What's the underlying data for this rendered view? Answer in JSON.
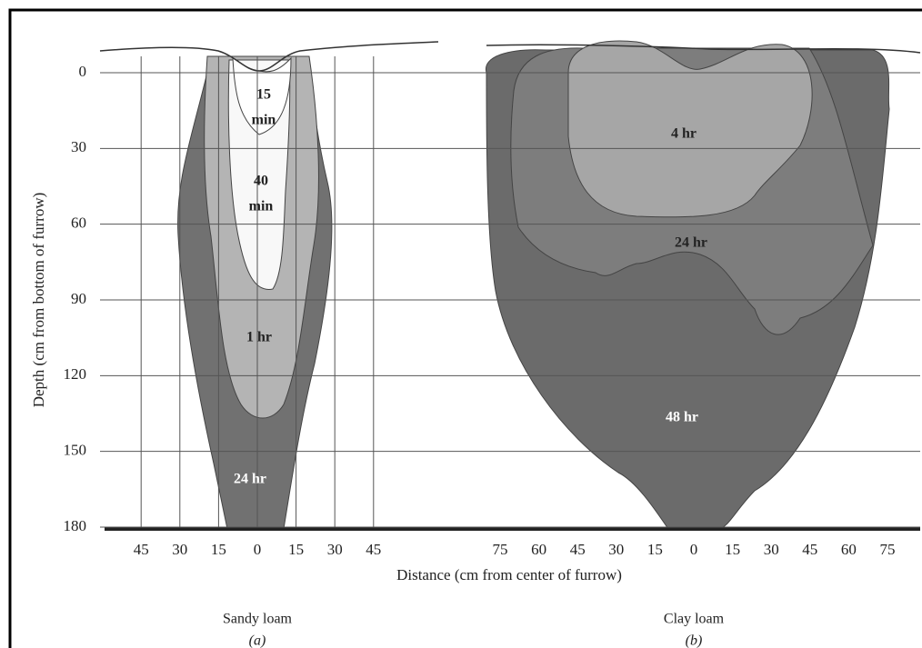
{
  "y_axis": {
    "label": "Depth (cm from bottom of furrow)",
    "ticks": [
      0,
      30,
      60,
      90,
      120,
      150,
      180
    ]
  },
  "x_axis": {
    "label": "Distance (cm from center of furrow)"
  },
  "panels": [
    {
      "name": "Sandy loam",
      "tag": "(a)",
      "x_ticks": [
        45,
        30,
        15,
        0,
        15,
        30,
        45
      ],
      "zones": [
        {
          "lines": [
            "15",
            "min"
          ]
        },
        {
          "lines": [
            "40",
            "min"
          ]
        },
        {
          "lines": [
            "1 hr"
          ]
        },
        {
          "lines": [
            "24 hr"
          ]
        }
      ]
    },
    {
      "name": "Clay loam",
      "tag": "(b)",
      "x_ticks": [
        75,
        60,
        45,
        30,
        15,
        0,
        15,
        30,
        45,
        60,
        75
      ],
      "zones": [
        {
          "lines": [
            "4 hr"
          ]
        },
        {
          "lines": [
            "24 hr"
          ]
        },
        {
          "lines": [
            "48 hr"
          ]
        }
      ]
    }
  ]
}
